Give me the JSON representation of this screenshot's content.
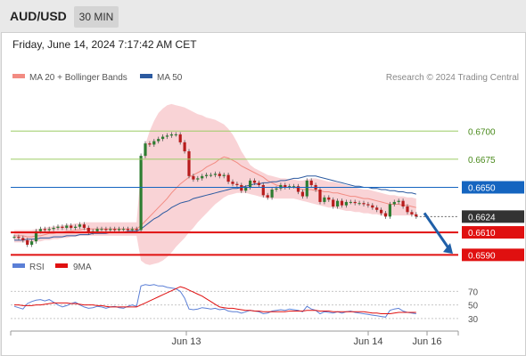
{
  "header": {
    "symbol": "AUD/USD",
    "timeframe": "30 MIN"
  },
  "chart": {
    "timestamp": "Friday, June 14, 2024 7:17:42 AM CET",
    "credit": "Research © 2024 Trading Central",
    "legend": [
      {
        "label": "MA 20 + Bollinger Bands",
        "color": "#f28b82"
      },
      {
        "label": "MA 50",
        "color": "#2c5aa0"
      }
    ],
    "rsi_legend": [
      {
        "label": "RSI",
        "color": "#5b7fd6"
      },
      {
        "label": "9MA",
        "color": "#e01010"
      }
    ]
  },
  "colors": {
    "up": "#2e7d32",
    "down": "#b71c1c",
    "resistance": "#9ccc65",
    "pivot": "#1565c0",
    "support": "#e01010",
    "current": "#333333",
    "arrow": "#1f5fa8",
    "band_fill": "#f8c8cc"
  },
  "chart_data": [
    {
      "type": "candlestick",
      "title": "",
      "y_range": [
        0.658,
        0.6735
      ],
      "x_tick_labels": [
        "Jun 13",
        "Jun 14",
        "Jun 16"
      ],
      "levels": [
        {
          "value": 0.67,
          "label": "0.6700",
          "kind": "resistance"
        },
        {
          "value": 0.6675,
          "label": "0.6675",
          "kind": "resistance"
        },
        {
          "value": 0.665,
          "label": "0.6650",
          "kind": "pivot"
        },
        {
          "value": 0.6624,
          "label": "0.6624",
          "kind": "current"
        },
        {
          "value": 0.661,
          "label": "0.6610",
          "kind": "support"
        },
        {
          "value": 0.659,
          "label": "0.6590",
          "kind": "support"
        }
      ],
      "close": [
        0.6606,
        0.6605,
        0.6603,
        0.6599,
        0.6602,
        0.6611,
        0.6613,
        0.6612,
        0.6613,
        0.6614,
        0.6615,
        0.6614,
        0.6616,
        0.6614,
        0.6615,
        0.6617,
        0.6614,
        0.661,
        0.6611,
        0.6613,
        0.6613,
        0.6612,
        0.6613,
        0.6612,
        0.6613,
        0.6613,
        0.6612,
        0.6613,
        0.6612,
        0.6678,
        0.6689,
        0.6688,
        0.6691,
        0.6693,
        0.6695,
        0.6696,
        0.6697,
        0.6697,
        0.669,
        0.6682,
        0.666,
        0.6657,
        0.6658,
        0.666,
        0.6661,
        0.6661,
        0.6662,
        0.666,
        0.6661,
        0.6655,
        0.6653,
        0.6652,
        0.6647,
        0.665,
        0.6656,
        0.6654,
        0.6652,
        0.6643,
        0.6641,
        0.6648,
        0.6649,
        0.6652,
        0.665,
        0.6651,
        0.6651,
        0.6646,
        0.6642,
        0.6656,
        0.6652,
        0.6648,
        0.6637,
        0.6641,
        0.6639,
        0.6633,
        0.6638,
        0.6634,
        0.6637,
        0.6637,
        0.6636,
        0.6636,
        0.6635,
        0.6634,
        0.6632,
        0.663,
        0.6627,
        0.6624,
        0.6635,
        0.6637,
        0.6638,
        0.6633,
        0.6628,
        0.6626,
        0.6624
      ],
      "ma20": [
        0.6607,
        0.6607,
        0.6607,
        0.6606,
        0.6606,
        0.6607,
        0.6607,
        0.6608,
        0.6609,
        0.6609,
        0.661,
        0.661,
        0.6611,
        0.6611,
        0.6612,
        0.6612,
        0.6613,
        0.6613,
        0.6613,
        0.6613,
        0.6613,
        0.6613,
        0.6613,
        0.6613,
        0.6613,
        0.6613,
        0.6613,
        0.6613,
        0.6613,
        0.6616,
        0.662,
        0.6624,
        0.6628,
        0.6632,
        0.6636,
        0.664,
        0.6645,
        0.6649,
        0.6653,
        0.6656,
        0.6659,
        0.6661,
        0.6663,
        0.6665,
        0.6668,
        0.667,
        0.6672,
        0.6675,
        0.6677,
        0.6676,
        0.6674,
        0.6672,
        0.6669,
        0.6667,
        0.6665,
        0.6663,
        0.6661,
        0.6659,
        0.6656,
        0.6654,
        0.6652,
        0.6651,
        0.665,
        0.665,
        0.665,
        0.6649,
        0.6648,
        0.6648,
        0.6648,
        0.6647,
        0.6647,
        0.6646,
        0.6646,
        0.6645,
        0.6645,
        0.6644,
        0.6643,
        0.6642,
        0.6642,
        0.6641,
        0.664,
        0.664,
        0.6639,
        0.6638,
        0.6637,
        0.6636,
        0.6635,
        0.6635,
        0.6635,
        0.6634,
        0.6634,
        0.6633,
        0.6632
      ],
      "bb_upper": [
        0.6612,
        0.6612,
        0.6612,
        0.6612,
        0.6612,
        0.6613,
        0.6613,
        0.6614,
        0.6615,
        0.6615,
        0.6616,
        0.6616,
        0.6617,
        0.6617,
        0.6618,
        0.6618,
        0.6619,
        0.6619,
        0.6619,
        0.6619,
        0.6619,
        0.6619,
        0.6619,
        0.6619,
        0.6619,
        0.6619,
        0.6619,
        0.6619,
        0.6619,
        0.6665,
        0.6688,
        0.67,
        0.6709,
        0.6716,
        0.672,
        0.6723,
        0.6724,
        0.6723,
        0.6722,
        0.6721,
        0.6719,
        0.6717,
        0.6715,
        0.6714,
        0.6712,
        0.6711,
        0.671,
        0.6708,
        0.6706,
        0.6702,
        0.6697,
        0.669,
        0.6682,
        0.6676,
        0.667,
        0.6667,
        0.6665,
        0.6663,
        0.6661,
        0.666,
        0.6659,
        0.6658,
        0.6658,
        0.6657,
        0.6657,
        0.6656,
        0.6656,
        0.6657,
        0.6658,
        0.6658,
        0.6657,
        0.6656,
        0.6655,
        0.6655,
        0.6654,
        0.6653,
        0.6652,
        0.6651,
        0.665,
        0.6649,
        0.6648,
        0.6648,
        0.6647,
        0.6646,
        0.6645,
        0.6644,
        0.6643,
        0.6643,
        0.6642,
        0.6642,
        0.6641,
        0.6641,
        0.664
      ],
      "bb_lower": [
        0.6601,
        0.6601,
        0.6601,
        0.6601,
        0.6601,
        0.6602,
        0.6602,
        0.6603,
        0.6603,
        0.6604,
        0.6604,
        0.6605,
        0.6605,
        0.6606,
        0.6606,
        0.6607,
        0.6607,
        0.6607,
        0.6607,
        0.6607,
        0.6607,
        0.6607,
        0.6607,
        0.6607,
        0.6607,
        0.6607,
        0.6607,
        0.6607,
        0.6607,
        0.6585,
        0.6582,
        0.6581,
        0.6582,
        0.6583,
        0.6585,
        0.6588,
        0.6592,
        0.6597,
        0.6601,
        0.6605,
        0.661,
        0.6614,
        0.6619,
        0.6623,
        0.6627,
        0.6631,
        0.6635,
        0.6638,
        0.6641,
        0.6643,
        0.6644,
        0.6645,
        0.6645,
        0.6645,
        0.6644,
        0.6643,
        0.6642,
        0.6641,
        0.664,
        0.664,
        0.664,
        0.664,
        0.664,
        0.664,
        0.664,
        0.6639,
        0.6638,
        0.6637,
        0.6636,
        0.6635,
        0.6634,
        0.6633,
        0.6632,
        0.6632,
        0.6631,
        0.663,
        0.6629,
        0.6629,
        0.6628,
        0.6628,
        0.6627,
        0.6627,
        0.6626,
        0.6626,
        0.6625,
        0.6625,
        0.6625,
        0.6625,
        0.6625,
        0.6625,
        0.6625,
        0.6625,
        0.6625
      ],
      "ma50": [
        0.6603,
        0.6603,
        0.6603,
        0.6604,
        0.6604,
        0.6604,
        0.6605,
        0.6605,
        0.6605,
        0.6606,
        0.6606,
        0.6606,
        0.6607,
        0.6607,
        0.6607,
        0.6608,
        0.6608,
        0.6608,
        0.6609,
        0.6609,
        0.6609,
        0.6609,
        0.661,
        0.661,
        0.661,
        0.661,
        0.6611,
        0.6611,
        0.6611,
        0.6613,
        0.6616,
        0.6619,
        0.6622,
        0.6624,
        0.6627,
        0.6629,
        0.6632,
        0.6634,
        0.6636,
        0.6637,
        0.6638,
        0.664,
        0.6641,
        0.6642,
        0.6643,
        0.6644,
        0.6645,
        0.6646,
        0.6647,
        0.6648,
        0.6649,
        0.6649,
        0.665,
        0.6651,
        0.6652,
        0.6653,
        0.6653,
        0.6654,
        0.6654,
        0.6655,
        0.6655,
        0.6656,
        0.6656,
        0.6657,
        0.6658,
        0.6658,
        0.6659,
        0.666,
        0.666,
        0.666,
        0.6659,
        0.6658,
        0.6657,
        0.6656,
        0.6655,
        0.6654,
        0.6653,
        0.6652,
        0.6651,
        0.6651,
        0.665,
        0.665,
        0.6649,
        0.6649,
        0.6648,
        0.6648,
        0.6647,
        0.6647,
        0.6646,
        0.6646,
        0.6645,
        0.6645,
        0.6644
      ]
    },
    {
      "type": "line",
      "title": "",
      "y_range": [
        18,
        85
      ],
      "y_ticks": [
        70,
        50,
        30
      ],
      "series": [
        {
          "name": "RSI",
          "values": [
            48,
            46,
            44,
            52,
            55,
            57,
            58,
            56,
            58,
            54,
            50,
            47,
            49,
            52,
            54,
            50,
            47,
            45,
            46,
            48,
            47,
            45,
            47,
            48,
            46,
            45,
            48,
            50,
            48,
            78,
            80,
            79,
            80,
            78,
            78,
            76,
            75,
            74,
            70,
            60,
            44,
            43,
            44,
            46,
            45,
            44,
            45,
            43,
            44,
            41,
            40,
            40,
            38,
            40,
            42,
            41,
            40,
            37,
            38,
            41,
            42,
            43,
            42,
            44,
            43,
            42,
            40,
            48,
            44,
            42,
            37,
            40,
            39,
            38,
            40,
            38,
            40,
            41,
            39,
            38,
            37,
            36,
            35,
            34,
            33,
            32,
            42,
            44,
            45,
            41,
            39,
            38,
            37
          ]
        },
        {
          "name": "9MA",
          "values": [
            50,
            50,
            49,
            49,
            49,
            50,
            50,
            51,
            52,
            53,
            53,
            53,
            53,
            52,
            52,
            51,
            50,
            50,
            50,
            49,
            49,
            48,
            47,
            47,
            47,
            47,
            47,
            47,
            47,
            50,
            53,
            56,
            59,
            62,
            65,
            68,
            71,
            74,
            77,
            75,
            72,
            69,
            66,
            63,
            59,
            55,
            51,
            47,
            46,
            45,
            45,
            44,
            43,
            42,
            42,
            41,
            41,
            40,
            40,
            40,
            40,
            40,
            40,
            41,
            41,
            41,
            41,
            42,
            42,
            42,
            41,
            41,
            41,
            40,
            40,
            40,
            40,
            40,
            40,
            40,
            40,
            39,
            38,
            38,
            37,
            37,
            37,
            38,
            39,
            39,
            39,
            39,
            39
          ]
        }
      ]
    }
  ]
}
